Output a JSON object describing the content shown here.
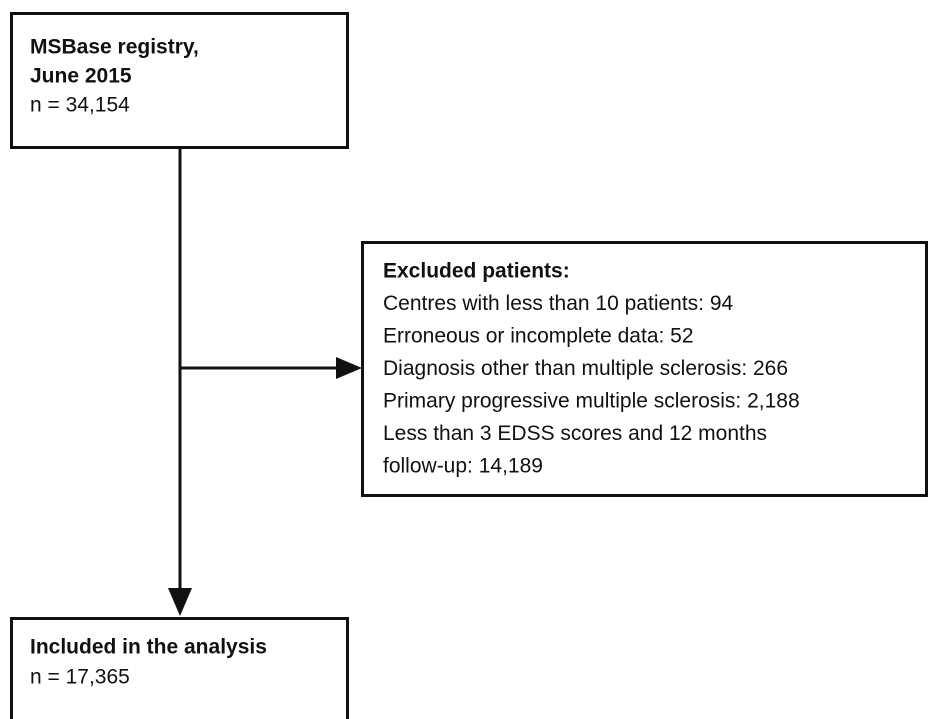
{
  "nodes": [
    {
      "title": [
        "MSBase registry,",
        "June 2015"
      ],
      "lines": [
        "n = 34,154"
      ]
    },
    {
      "title": [
        "Excluded patients:"
      ],
      "lines": [
        "Centres with less than 10 patients: 94",
        "Erroneous or incomplete data: 52",
        "Diagnosis other than multiple sclerosis: 266",
        "Primary progressive multiple sclerosis: 2,188",
        "Less than 3 EDSS scores and 12 months",
        "follow-up: 14,189"
      ]
    },
    {
      "title": [
        "Included in the analysis"
      ],
      "lines": [
        "n = 17,365"
      ]
    }
  ]
}
